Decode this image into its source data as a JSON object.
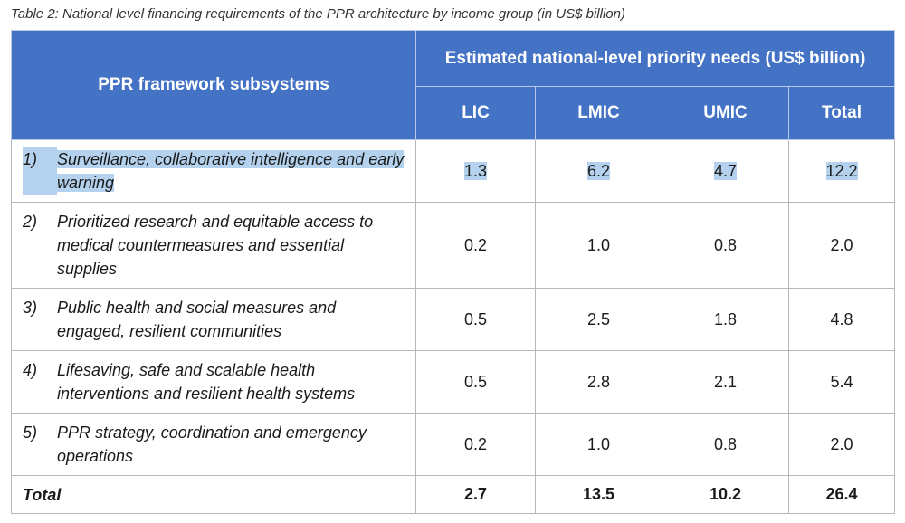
{
  "caption": "Table 2: National level financing requirements of the PPR architecture by income group (in US$ billion)",
  "header": {
    "subsystems": "PPR framework subsystems",
    "needs": "Estimated national-level priority needs (US$ billion)",
    "columns": [
      "LIC",
      "LMIC",
      "UMIC",
      "Total"
    ]
  },
  "rows": [
    {
      "num": "1)",
      "label": "Surveillance, collaborative intelligence and early warning",
      "values": [
        "1.3",
        "6.2",
        "4.7",
        "12.2"
      ],
      "highlighted": true
    },
    {
      "num": "2)",
      "label": "Prioritized research and equitable access to medical countermeasures and essential supplies",
      "values": [
        "0.2",
        "1.0",
        "0.8",
        "2.0"
      ]
    },
    {
      "num": "3)",
      "label": "Public health and social measures and engaged, resilient communities",
      "values": [
        "0.5",
        "2.5",
        "1.8",
        "4.8"
      ]
    },
    {
      "num": "4)",
      "label": "Lifesaving, safe and scalable health interventions and resilient health systems",
      "values": [
        "0.5",
        "2.8",
        "2.1",
        "5.4"
      ]
    },
    {
      "num": "5)",
      "label": "PPR strategy, coordination and emergency operations",
      "values": [
        "0.2",
        "1.0",
        "0.8",
        "2.0"
      ]
    }
  ],
  "total": {
    "label": "Total",
    "values": [
      "2.7",
      "13.5",
      "10.2",
      "26.4"
    ]
  }
}
